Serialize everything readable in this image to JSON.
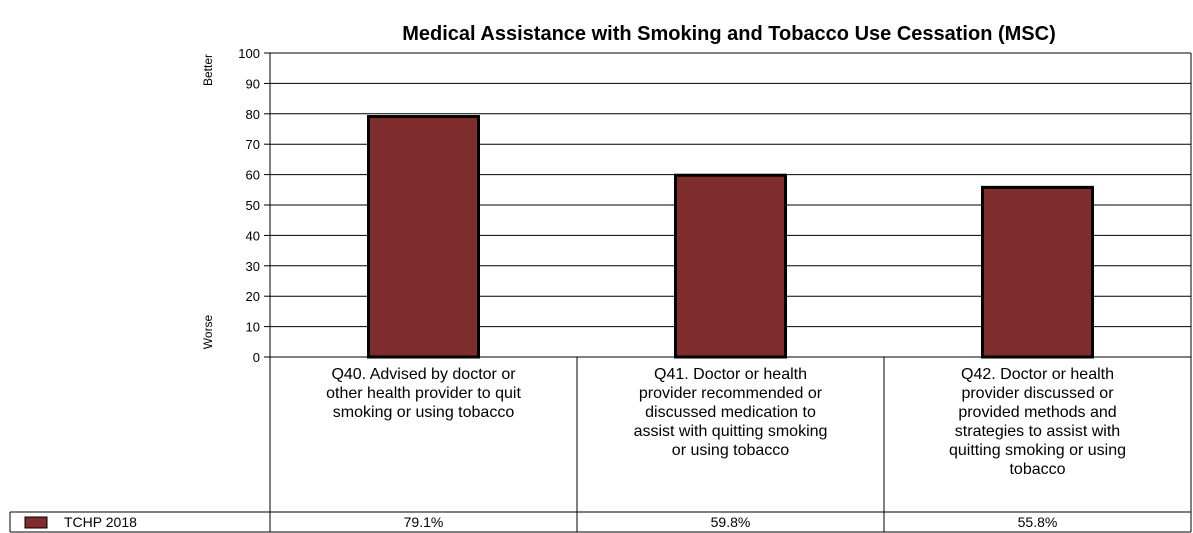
{
  "chart_data": {
    "type": "bar",
    "title": "Medical Assistance with Smoking and Tobacco Use Cessation (MSC)",
    "y_side_labels": {
      "top": "Better",
      "bottom": "Worse"
    },
    "ylim": [
      0,
      100
    ],
    "yticks": [
      0,
      10,
      20,
      30,
      40,
      50,
      60,
      70,
      80,
      90,
      100
    ],
    "grid": true,
    "categories": [
      [
        "Q40. Advised by doctor or",
        "other health provider to quit",
        "smoking or using tobacco"
      ],
      [
        "Q41. Doctor or health",
        "provider recommended or",
        "discussed medication to",
        "assist with quitting smoking",
        "or using tobacco"
      ],
      [
        "Q42. Doctor or health",
        "provider discussed or",
        "provided methods and",
        "strategies to assist with",
        "quitting smoking or using",
        "tobacco"
      ]
    ],
    "series": [
      {
        "name": "TCHP 2018",
        "color": "#7f2c2c",
        "values": [
          79.1,
          59.8,
          55.8
        ],
        "table_labels": [
          "79.1%",
          "59.8%",
          "55.8%"
        ]
      }
    ]
  }
}
